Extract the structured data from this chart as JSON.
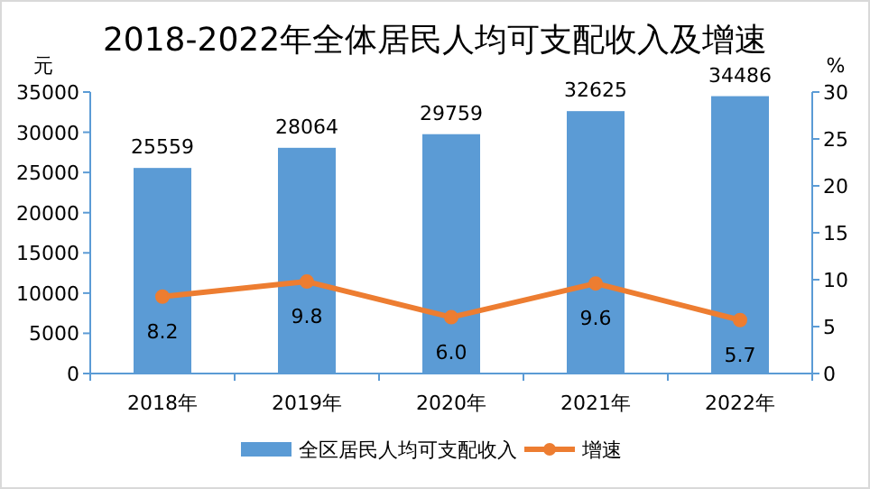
{
  "chart_data": {
    "type": "bar",
    "title": "2018-2022年全体居民人均可支配收入及增速",
    "ylabel": "元",
    "y2label": "%",
    "categories": [
      "2018年",
      "2019年",
      "2020年",
      "2021年",
      "2022年"
    ],
    "series": [
      {
        "name": "全区居民人均可支配收入",
        "color": "#5b9bd5",
        "values": [
          25559,
          28064,
          29759,
          32625,
          34486
        ]
      },
      {
        "name": "增速",
        "type": "line",
        "axis": "y2",
        "color": "#ed7d31",
        "marker": "circle",
        "values": [
          8.2,
          9.8,
          6.0,
          9.6,
          5.7
        ],
        "value_labels": [
          "8.2",
          "9.8",
          "6.0",
          "9.6",
          "5.7"
        ]
      }
    ],
    "ylim": [
      0,
      35000
    ],
    "yticks": [
      0,
      5000,
      10000,
      15000,
      20000,
      25000,
      30000,
      35000
    ],
    "y2lim": [
      0,
      30
    ],
    "y2ticks": [
      0,
      5,
      10,
      15,
      20,
      25,
      30
    ],
    "data_labels": true,
    "legend": "bottom",
    "grid": false
  }
}
